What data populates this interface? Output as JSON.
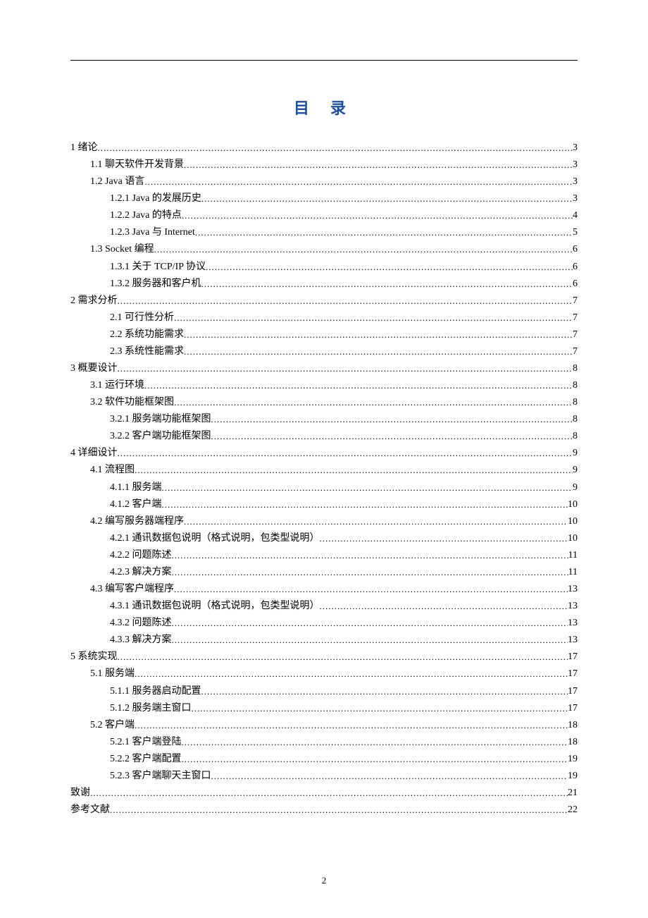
{
  "title": "目  录",
  "page_number": "2",
  "colors": {
    "title_color": "#1a4f9c",
    "text_color": "#000000",
    "background": "#ffffff"
  },
  "typography": {
    "title_fontsize": 22,
    "body_fontsize": 14,
    "title_font": "SimHei",
    "body_font": "SimSun"
  },
  "entries": [
    {
      "level": 0,
      "label": "1 绪论",
      "page": "3"
    },
    {
      "level": 1,
      "label": "1.1 聊天软件开发背景",
      "page": "3"
    },
    {
      "level": 1,
      "label": "1.2 Java 语言",
      "page": "3"
    },
    {
      "level": 2,
      "label": "1.2.1 Java 的发展历史",
      "page": "3"
    },
    {
      "level": 2,
      "label": "1.2.2 Java 的特点",
      "page": "4"
    },
    {
      "level": 2,
      "label": "1.2.3 Java 与 Internet",
      "page": "5"
    },
    {
      "level": 1,
      "label": "1.3 Socket 编程",
      "page": "6"
    },
    {
      "level": 2,
      "label": "1.3.1 关于 TCP/IP 协议",
      "page": "6"
    },
    {
      "level": 2,
      "label": "1.3.2 服务器和客户机",
      "page": "6"
    },
    {
      "level": 0,
      "label": "2 需求分析",
      "page": "7"
    },
    {
      "level": 2,
      "label": "2.1 可行性分析",
      "page": "7"
    },
    {
      "level": 2,
      "label": "2.2 系统功能需求",
      "page": "7"
    },
    {
      "level": 2,
      "label": "2.3 系统性能需求",
      "page": "7"
    },
    {
      "level": 0,
      "label": "3 概要设计",
      "page": "8"
    },
    {
      "level": 1,
      "label": "3.1 运行环境",
      "page": "8"
    },
    {
      "level": 1,
      "label": "3.2 软件功能框架图",
      "page": "8"
    },
    {
      "level": 2,
      "label": "3.2.1 服务端功能框架图",
      "page": "8"
    },
    {
      "level": 2,
      "label": "3.2.2 客户端功能框架图",
      "page": "8"
    },
    {
      "level": 0,
      "label": "4 详细设计",
      "page": "9"
    },
    {
      "level": 1,
      "label": "4.1 流程图",
      "page": "9"
    },
    {
      "level": 2,
      "label": "4.1.1 服务端",
      "page": "9"
    },
    {
      "level": 2,
      "label": "4.1.2 客户端",
      "page": "10"
    },
    {
      "level": 1,
      "label": "4.2 编写服务器端程序",
      "page": "10"
    },
    {
      "level": 2,
      "label": "4.2.1 通讯数据包说明（格式说明，包类型说明）",
      "page": "10"
    },
    {
      "level": 2,
      "label": "4.2.2 问题陈述",
      "page": "11"
    },
    {
      "level": 2,
      "label": "4.2.3  解决方案",
      "page": "11"
    },
    {
      "level": 1,
      "label": "4.3 编写客户端程序",
      "page": "13"
    },
    {
      "level": 2,
      "label": "4.3.1 通讯数据包说明（格式说明，包类型说明）",
      "page": "13"
    },
    {
      "level": 2,
      "label": "4.3.2 问题陈述",
      "page": "13"
    },
    {
      "level": 2,
      "label": "4.3.3 解决方案",
      "page": "13"
    },
    {
      "level": 0,
      "label": "5 系统实现",
      "page": "17"
    },
    {
      "level": 1,
      "label": "5.1 服务端",
      "page": "17"
    },
    {
      "level": 2,
      "label": "5.1.1 服务器启动配置",
      "page": "17"
    },
    {
      "level": 2,
      "label": "5.1.2 服务端主窗口",
      "page": "17"
    },
    {
      "level": 1,
      "label": "5.2 客户端",
      "page": "18"
    },
    {
      "level": 2,
      "label": "5.2.1 客户端登陆",
      "page": "18"
    },
    {
      "level": 2,
      "label": "5.2.2 客户端配置",
      "page": "19"
    },
    {
      "level": 2,
      "label": "5.2.3 客户端聊天主窗口",
      "page": "19"
    },
    {
      "level": 0,
      "label": "致谢",
      "page": "21"
    },
    {
      "level": 0,
      "label": "参考文献",
      "page": "22"
    }
  ]
}
